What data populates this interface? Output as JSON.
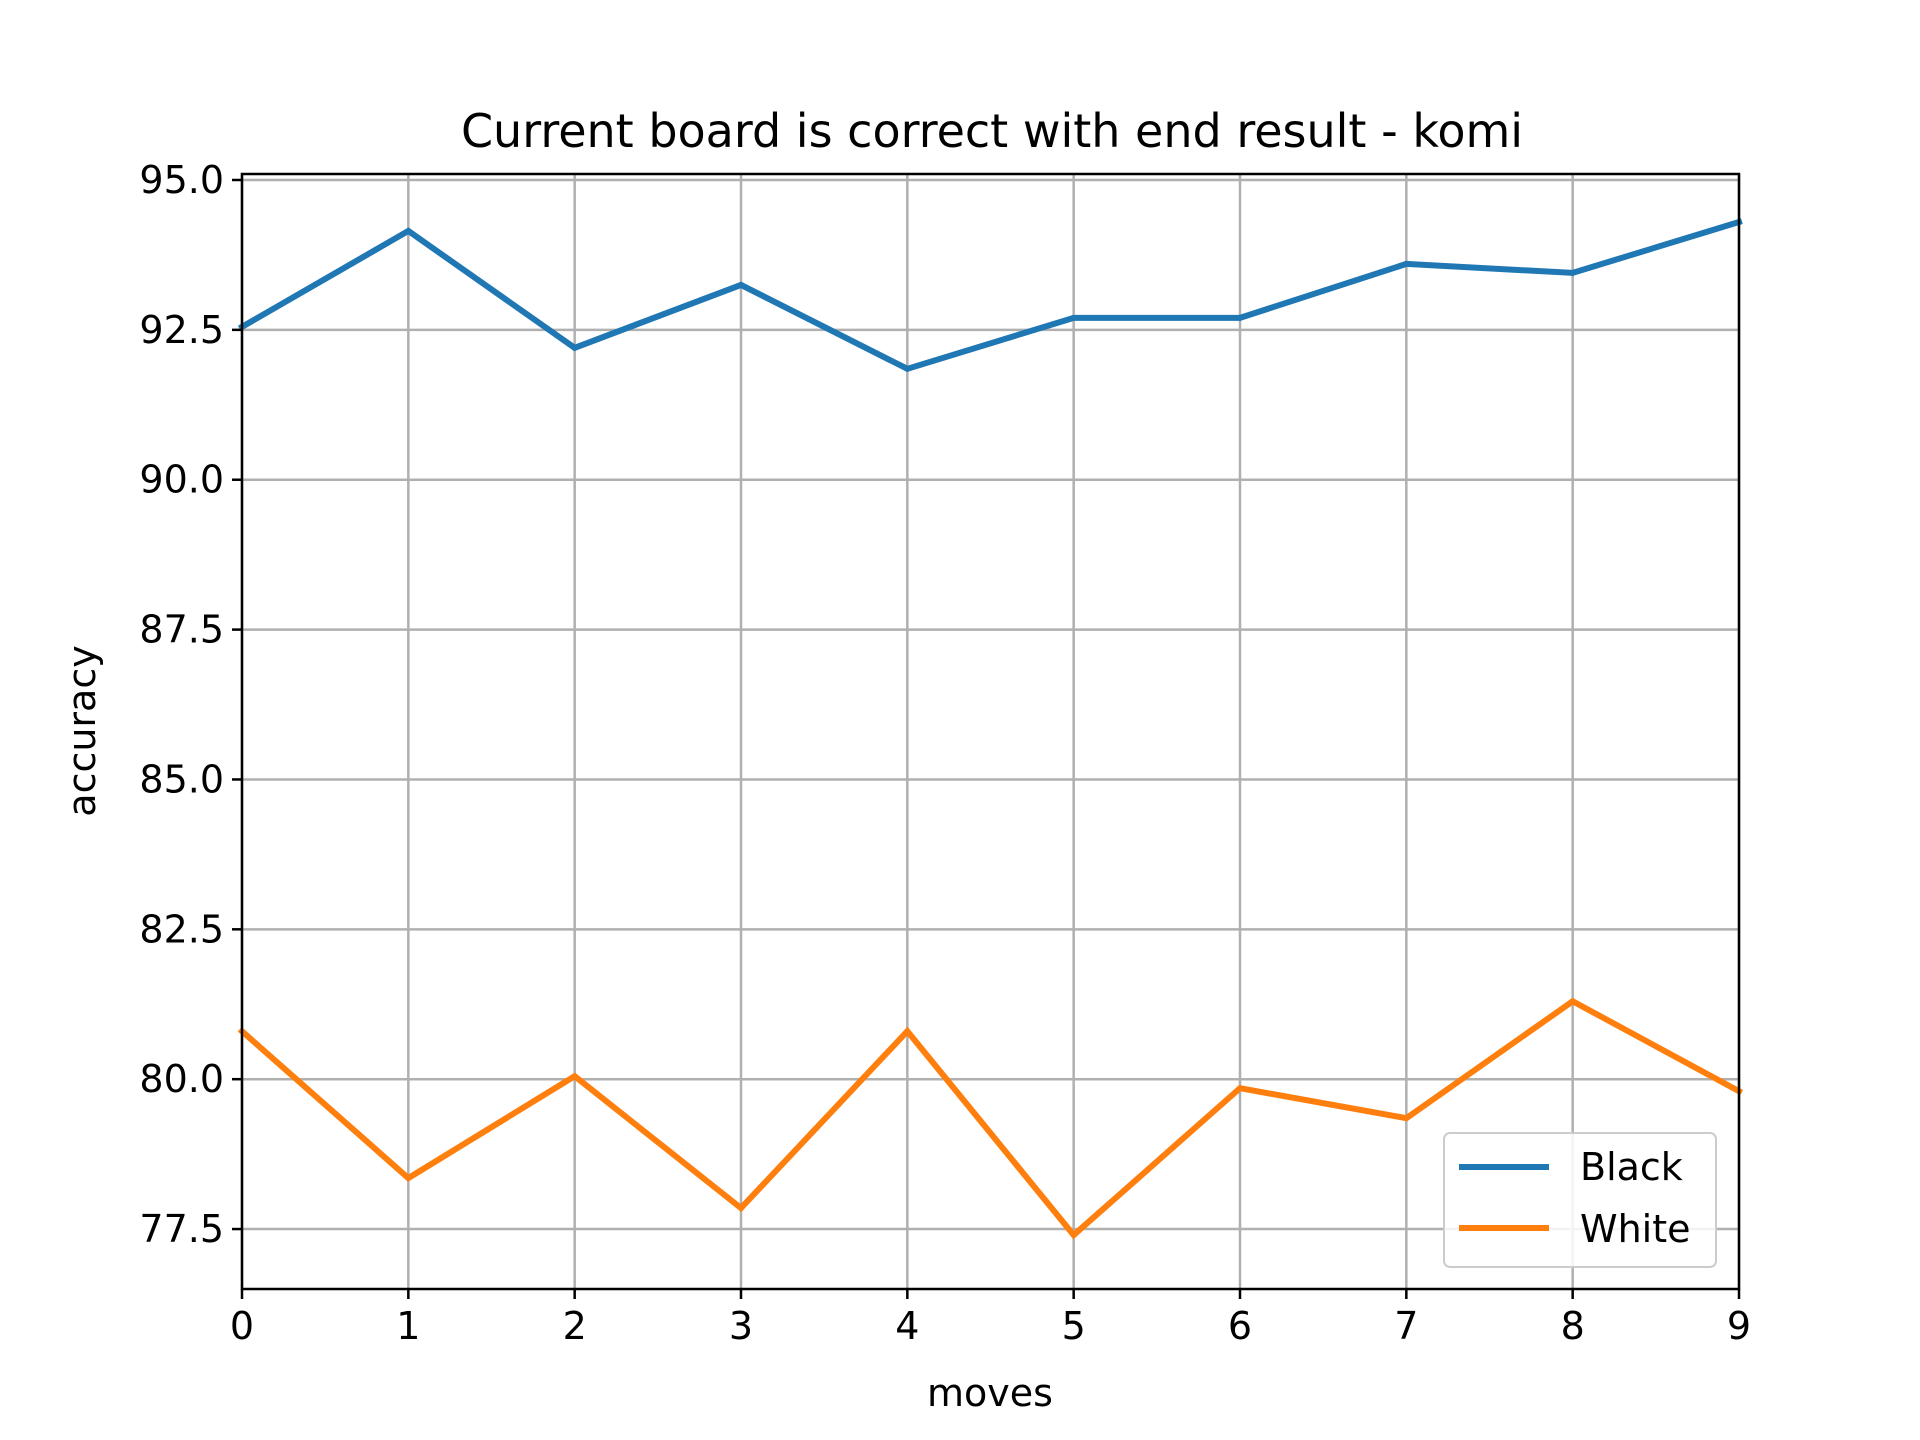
{
  "chart_data": {
    "type": "line",
    "title": "Current board is correct with end result - komi",
    "xlabel": "moves",
    "ylabel": "accuracy",
    "x": [
      0,
      1,
      2,
      3,
      4,
      5,
      6,
      7,
      8,
      9
    ],
    "x_ticks": [
      "0",
      "1",
      "2",
      "3",
      "4",
      "5",
      "6",
      "7",
      "8",
      "9"
    ],
    "y_ticks": [
      "77.5",
      "80.0",
      "82.5",
      "85.0",
      "87.5",
      "90.0",
      "92.5",
      "95.0"
    ],
    "xlim": [
      0,
      9
    ],
    "ylim": [
      76.5,
      95.1
    ],
    "grid": true,
    "legend_position": "lower-right",
    "series": [
      {
        "name": "Black",
        "color": "#1f77b4",
        "values": [
          92.55,
          94.15,
          92.2,
          93.25,
          91.85,
          92.7,
          92.7,
          93.6,
          93.45,
          94.3
        ]
      },
      {
        "name": "White",
        "color": "#ff7f0e",
        "values": [
          80.8,
          78.35,
          80.05,
          77.85,
          80.8,
          77.4,
          79.85,
          79.35,
          81.3,
          79.8
        ]
      }
    ]
  }
}
